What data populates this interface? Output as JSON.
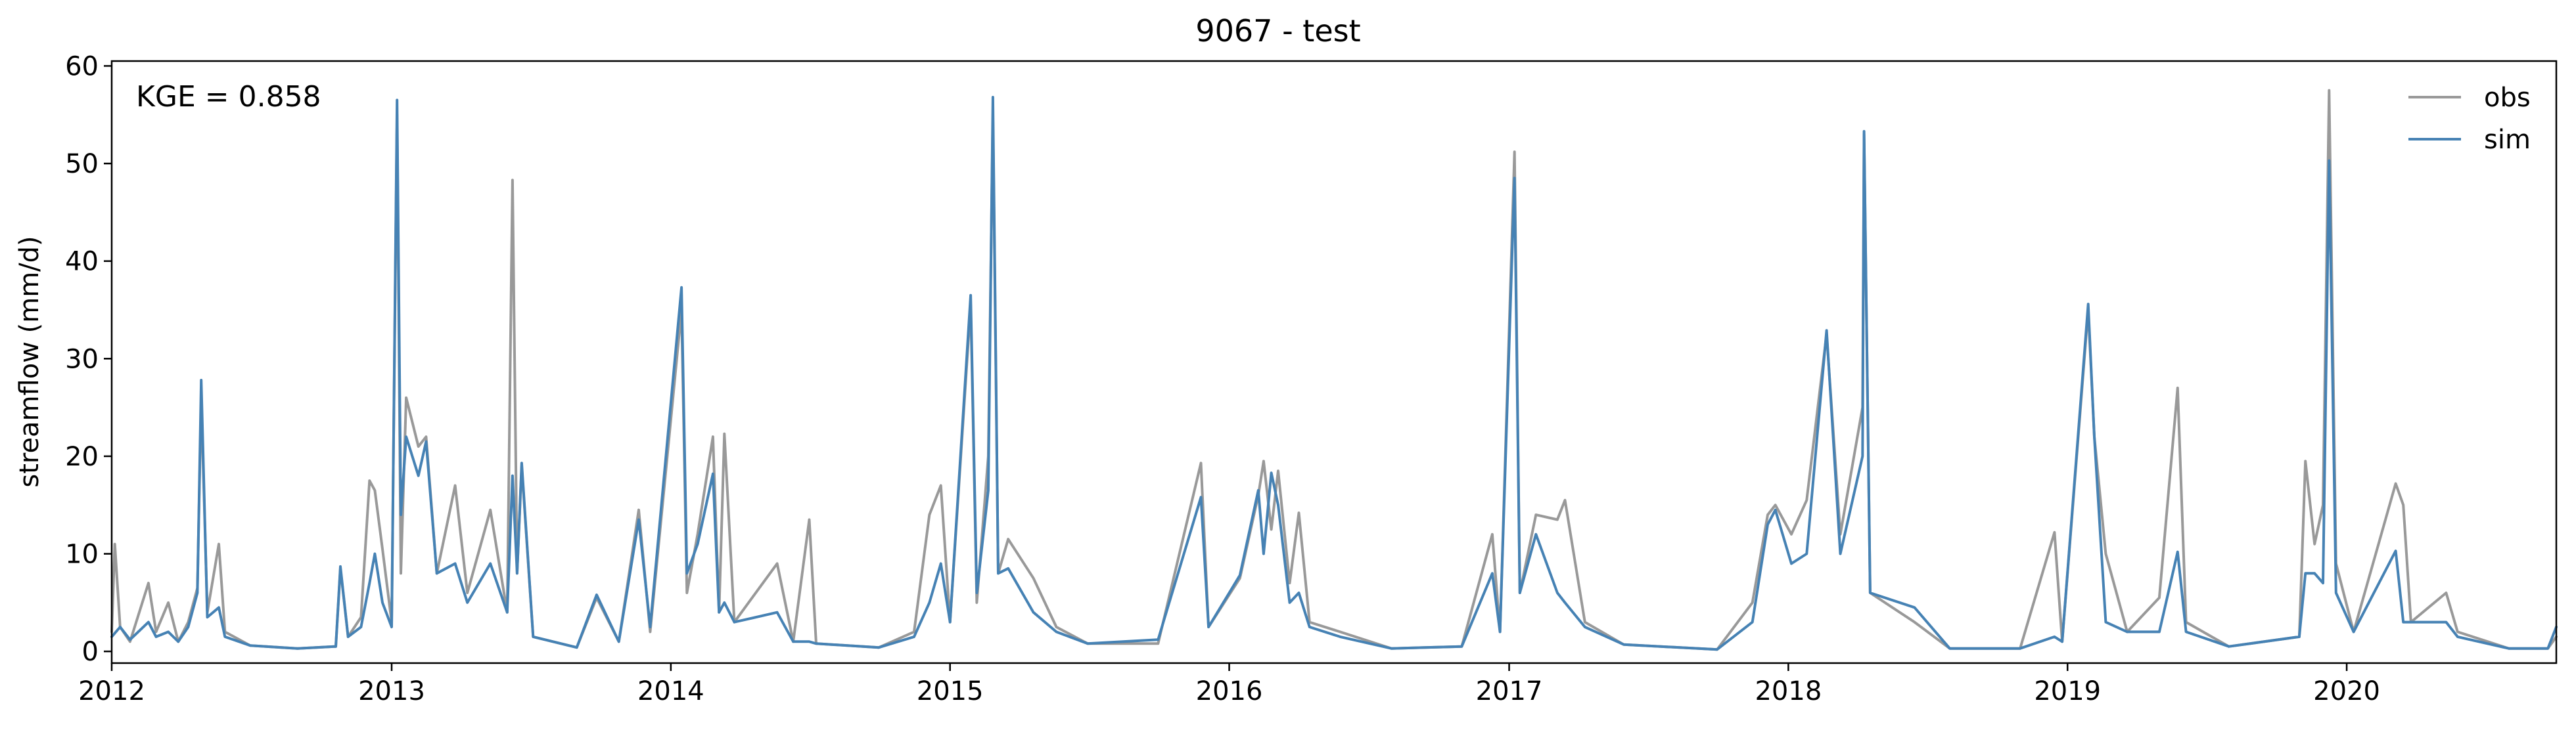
{
  "chart_data": {
    "type": "line",
    "title": "9067 - test",
    "xlabel": "",
    "ylabel": "streamflow (mm/d)",
    "xlim": [
      "2012-01-01",
      "2020-10-01"
    ],
    "ylim": [
      -1.2,
      60.5
    ],
    "x_ticks": [
      "2012",
      "2013",
      "2014",
      "2015",
      "2016",
      "2017",
      "2018",
      "2019",
      "2020"
    ],
    "y_ticks": [
      0,
      10,
      20,
      30,
      40,
      50,
      60
    ],
    "grid": false,
    "legend": "top-right",
    "annotation": "KGE = 0.858",
    "series": [
      {
        "name": "obs",
        "color": "#999999",
        "points": [
          [
            "2012-01-01",
            2.0
          ],
          [
            "2012-01-05",
            11.0
          ],
          [
            "2012-01-12",
            2.5
          ],
          [
            "2012-01-25",
            1.0
          ],
          [
            "2012-02-18",
            7.0
          ],
          [
            "2012-02-28",
            2.0
          ],
          [
            "2012-03-15",
            5.0
          ],
          [
            "2012-03-28",
            1.0
          ],
          [
            "2012-04-10",
            3.0
          ],
          [
            "2012-04-22",
            6.5
          ],
          [
            "2012-04-27",
            26.0
          ],
          [
            "2012-05-05",
            4.0
          ],
          [
            "2012-05-20",
            11.0
          ],
          [
            "2012-05-28",
            2.0
          ],
          [
            "2012-06-30",
            0.6
          ],
          [
            "2012-08-31",
            0.3
          ],
          [
            "2012-10-20",
            0.5
          ],
          [
            "2012-10-26",
            8.5
          ],
          [
            "2012-11-05",
            1.5
          ],
          [
            "2012-11-22",
            3.5
          ],
          [
            "2012-12-03",
            17.5
          ],
          [
            "2012-12-10",
            16.5
          ],
          [
            "2012-12-20",
            10.5
          ],
          [
            "2013-01-01",
            3.0
          ],
          [
            "2013-01-08",
            55.0
          ],
          [
            "2013-01-13",
            8.0
          ],
          [
            "2013-01-20",
            26.0
          ],
          [
            "2013-02-05",
            21.0
          ],
          [
            "2013-02-15",
            22.0
          ],
          [
            "2013-03-01",
            8.0
          ],
          [
            "2013-03-25",
            17.0
          ],
          [
            "2013-04-10",
            6.0
          ],
          [
            "2013-05-10",
            14.5
          ],
          [
            "2013-06-01",
            4.0
          ],
          [
            "2013-06-08",
            48.3
          ],
          [
            "2013-06-14",
            8.0
          ],
          [
            "2013-06-20",
            19.0
          ],
          [
            "2013-07-05",
            1.5
          ],
          [
            "2013-08-31",
            0.4
          ],
          [
            "2013-09-26",
            5.5
          ],
          [
            "2013-10-25",
            1.0
          ],
          [
            "2013-11-20",
            14.5
          ],
          [
            "2013-12-05",
            2.0
          ],
          [
            "2014-01-15",
            35.0
          ],
          [
            "2014-01-22",
            6.0
          ],
          [
            "2014-02-05",
            12.0
          ],
          [
            "2014-02-25",
            22.0
          ],
          [
            "2014-03-05",
            4.0
          ],
          [
            "2014-03-12",
            22.3
          ],
          [
            "2014-03-25",
            3.0
          ],
          [
            "2014-05-20",
            9.0
          ],
          [
            "2014-06-10",
            1.0
          ],
          [
            "2014-07-01",
            13.5
          ],
          [
            "2014-07-10",
            0.8
          ],
          [
            "2014-09-30",
            0.4
          ],
          [
            "2014-11-15",
            2.0
          ],
          [
            "2014-12-05",
            14.0
          ],
          [
            "2014-12-20",
            17.0
          ],
          [
            "2015-01-01",
            3.0
          ],
          [
            "2015-01-28",
            35.5
          ],
          [
            "2015-02-05",
            5.0
          ],
          [
            "2015-02-20",
            20.0
          ],
          [
            "2015-02-26",
            55.0
          ],
          [
            "2015-03-05",
            8.0
          ],
          [
            "2015-03-18",
            11.5
          ],
          [
            "2015-04-20",
            7.5
          ],
          [
            "2015-05-20",
            2.5
          ],
          [
            "2015-06-30",
            0.8
          ],
          [
            "2015-09-30",
            0.8
          ],
          [
            "2015-11-25",
            19.3
          ],
          [
            "2015-12-05",
            2.5
          ],
          [
            "2016-01-15",
            7.5
          ],
          [
            "2016-02-08",
            16.0
          ],
          [
            "2016-02-15",
            19.5
          ],
          [
            "2016-02-25",
            12.5
          ],
          [
            "2016-03-05",
            18.5
          ],
          [
            "2016-03-20",
            7.0
          ],
          [
            "2016-04-01",
            14.2
          ],
          [
            "2016-04-15",
            3.0
          ],
          [
            "2016-05-25",
            2.0
          ],
          [
            "2016-07-31",
            0.3
          ],
          [
            "2016-10-31",
            0.5
          ],
          [
            "2016-12-10",
            12.0
          ],
          [
            "2016-12-20",
            2.0
          ],
          [
            "2017-01-08",
            51.2
          ],
          [
            "2017-01-15",
            6.0
          ],
          [
            "2017-02-05",
            14.0
          ],
          [
            "2017-03-05",
            13.5
          ],
          [
            "2017-03-15",
            15.5
          ],
          [
            "2017-04-10",
            3.0
          ],
          [
            "2017-05-31",
            0.7
          ],
          [
            "2017-09-30",
            0.2
          ],
          [
            "2017-11-15",
            5.0
          ],
          [
            "2017-12-05",
            14.0
          ],
          [
            "2017-12-15",
            15.0
          ],
          [
            "2018-01-05",
            12.0
          ],
          [
            "2018-01-25",
            15.5
          ],
          [
            "2018-02-20",
            32.5
          ],
          [
            "2018-03-10",
            12.0
          ],
          [
            "2018-04-08",
            25.0
          ],
          [
            "2018-04-10",
            53.0
          ],
          [
            "2018-04-18",
            6.0
          ],
          [
            "2018-06-15",
            3.0
          ],
          [
            "2018-07-31",
            0.3
          ],
          [
            "2018-10-31",
            0.3
          ],
          [
            "2018-12-15",
            12.2
          ],
          [
            "2018-12-25",
            1.0
          ],
          [
            "2019-01-28",
            35.0
          ],
          [
            "2019-02-05",
            22.0
          ],
          [
            "2019-02-20",
            10.0
          ],
          [
            "2019-03-20",
            2.0
          ],
          [
            "2019-05-01",
            5.5
          ],
          [
            "2019-05-25",
            27.0
          ],
          [
            "2019-06-05",
            3.0
          ],
          [
            "2019-07-31",
            0.5
          ],
          [
            "2019-10-31",
            1.5
          ],
          [
            "2019-11-08",
            19.5
          ],
          [
            "2019-11-20",
            11.0
          ],
          [
            "2019-12-01",
            15.0
          ],
          [
            "2019-12-09",
            57.5
          ],
          [
            "2019-12-18",
            9.0
          ],
          [
            "2020-01-10",
            2.0
          ],
          [
            "2020-03-05",
            17.2
          ],
          [
            "2020-03-15",
            15.0
          ],
          [
            "2020-03-25",
            3.0
          ],
          [
            "2020-05-10",
            6.0
          ],
          [
            "2020-05-25",
            2.0
          ],
          [
            "2020-07-31",
            0.3
          ],
          [
            "2020-09-20",
            0.3
          ],
          [
            "2020-10-01",
            1.5
          ]
        ]
      },
      {
        "name": "sim",
        "color": "#4682b4",
        "points": [
          [
            "2012-01-01",
            1.5
          ],
          [
            "2012-01-12",
            2.5
          ],
          [
            "2012-01-25",
            1.2
          ],
          [
            "2012-02-18",
            3.0
          ],
          [
            "2012-02-28",
            1.5
          ],
          [
            "2012-03-15",
            2.0
          ],
          [
            "2012-03-28",
            1.0
          ],
          [
            "2012-04-10",
            2.5
          ],
          [
            "2012-04-22",
            6.0
          ],
          [
            "2012-04-27",
            27.8
          ],
          [
            "2012-05-05",
            3.5
          ],
          [
            "2012-05-20",
            4.5
          ],
          [
            "2012-05-28",
            1.5
          ],
          [
            "2012-06-30",
            0.6
          ],
          [
            "2012-08-31",
            0.3
          ],
          [
            "2012-10-20",
            0.5
          ],
          [
            "2012-10-26",
            8.7
          ],
          [
            "2012-11-05",
            1.5
          ],
          [
            "2012-11-22",
            2.5
          ],
          [
            "2012-12-03",
            7.0
          ],
          [
            "2012-12-10",
            10.0
          ],
          [
            "2012-12-20",
            5.0
          ],
          [
            "2013-01-01",
            2.5
          ],
          [
            "2013-01-08",
            56.5
          ],
          [
            "2013-01-13",
            14.0
          ],
          [
            "2013-01-20",
            22.0
          ],
          [
            "2013-02-05",
            18.0
          ],
          [
            "2013-02-15",
            21.5
          ],
          [
            "2013-03-01",
            8.0
          ],
          [
            "2013-03-25",
            9.0
          ],
          [
            "2013-04-10",
            5.0
          ],
          [
            "2013-05-10",
            9.0
          ],
          [
            "2013-06-01",
            4.0
          ],
          [
            "2013-06-08",
            18.0
          ],
          [
            "2013-06-14",
            8.0
          ],
          [
            "2013-06-20",
            19.3
          ],
          [
            "2013-07-05",
            1.5
          ],
          [
            "2013-08-31",
            0.4
          ],
          [
            "2013-09-26",
            5.8
          ],
          [
            "2013-10-25",
            1.0
          ],
          [
            "2013-11-20",
            13.5
          ],
          [
            "2013-12-05",
            2.5
          ],
          [
            "2014-01-15",
            37.3
          ],
          [
            "2014-01-22",
            8.0
          ],
          [
            "2014-02-05",
            11.0
          ],
          [
            "2014-02-25",
            18.2
          ],
          [
            "2014-03-05",
            4.0
          ],
          [
            "2014-03-12",
            5.0
          ],
          [
            "2014-03-25",
            3.0
          ],
          [
            "2014-05-20",
            4.0
          ],
          [
            "2014-06-10",
            1.0
          ],
          [
            "2014-07-01",
            1.0
          ],
          [
            "2014-07-10",
            0.8
          ],
          [
            "2014-09-30",
            0.4
          ],
          [
            "2014-11-15",
            1.5
          ],
          [
            "2014-12-05",
            5.0
          ],
          [
            "2014-12-20",
            9.0
          ],
          [
            "2015-01-01",
            3.0
          ],
          [
            "2015-01-28",
            36.5
          ],
          [
            "2015-02-05",
            6.0
          ],
          [
            "2015-02-20",
            16.5
          ],
          [
            "2015-02-26",
            56.8
          ],
          [
            "2015-03-05",
            8.0
          ],
          [
            "2015-03-18",
            8.5
          ],
          [
            "2015-04-20",
            4.0
          ],
          [
            "2015-05-20",
            2.0
          ],
          [
            "2015-06-30",
            0.8
          ],
          [
            "2015-09-30",
            1.2
          ],
          [
            "2015-11-25",
            15.8
          ],
          [
            "2015-12-05",
            2.5
          ],
          [
            "2016-01-15",
            7.8
          ],
          [
            "2016-02-08",
            16.5
          ],
          [
            "2016-02-15",
            10.0
          ],
          [
            "2016-02-25",
            18.3
          ],
          [
            "2016-03-05",
            15.0
          ],
          [
            "2016-03-20",
            5.0
          ],
          [
            "2016-04-01",
            6.0
          ],
          [
            "2016-04-15",
            2.5
          ],
          [
            "2016-05-25",
            1.5
          ],
          [
            "2016-07-31",
            0.3
          ],
          [
            "2016-10-31",
            0.5
          ],
          [
            "2016-12-10",
            8.0
          ],
          [
            "2016-12-20",
            2.0
          ],
          [
            "2017-01-08",
            48.5
          ],
          [
            "2017-01-15",
            6.0
          ],
          [
            "2017-02-05",
            12.0
          ],
          [
            "2017-03-05",
            6.0
          ],
          [
            "2017-03-15",
            5.0
          ],
          [
            "2017-04-10",
            2.5
          ],
          [
            "2017-05-31",
            0.7
          ],
          [
            "2017-09-30",
            0.2
          ],
          [
            "2017-11-15",
            3.0
          ],
          [
            "2017-12-05",
            13.0
          ],
          [
            "2017-12-15",
            14.5
          ],
          [
            "2018-01-05",
            9.0
          ],
          [
            "2018-01-25",
            10.0
          ],
          [
            "2018-02-20",
            32.9
          ],
          [
            "2018-03-10",
            10.0
          ],
          [
            "2018-04-08",
            20.0
          ],
          [
            "2018-04-10",
            53.3
          ],
          [
            "2018-04-18",
            6.0
          ],
          [
            "2018-06-15",
            4.5
          ],
          [
            "2018-07-31",
            0.3
          ],
          [
            "2018-10-31",
            0.3
          ],
          [
            "2018-12-15",
            1.5
          ],
          [
            "2018-12-25",
            1.0
          ],
          [
            "2019-01-28",
            35.6
          ],
          [
            "2019-02-05",
            22.0
          ],
          [
            "2019-02-20",
            3.0
          ],
          [
            "2019-03-20",
            2.0
          ],
          [
            "2019-05-01",
            2.0
          ],
          [
            "2019-05-25",
            10.2
          ],
          [
            "2019-06-05",
            2.0
          ],
          [
            "2019-07-31",
            0.5
          ],
          [
            "2019-10-31",
            1.5
          ],
          [
            "2019-11-08",
            8.0
          ],
          [
            "2019-11-20",
            8.0
          ],
          [
            "2019-12-01",
            7.0
          ],
          [
            "2019-12-09",
            50.3
          ],
          [
            "2019-12-18",
            6.0
          ],
          [
            "2020-01-10",
            2.0
          ],
          [
            "2020-03-05",
            10.3
          ],
          [
            "2020-03-15",
            3.0
          ],
          [
            "2020-03-25",
            3.0
          ],
          [
            "2020-05-10",
            3.0
          ],
          [
            "2020-05-25",
            1.5
          ],
          [
            "2020-07-31",
            0.3
          ],
          [
            "2020-09-20",
            0.3
          ],
          [
            "2020-10-01",
            2.5
          ]
        ]
      }
    ]
  }
}
